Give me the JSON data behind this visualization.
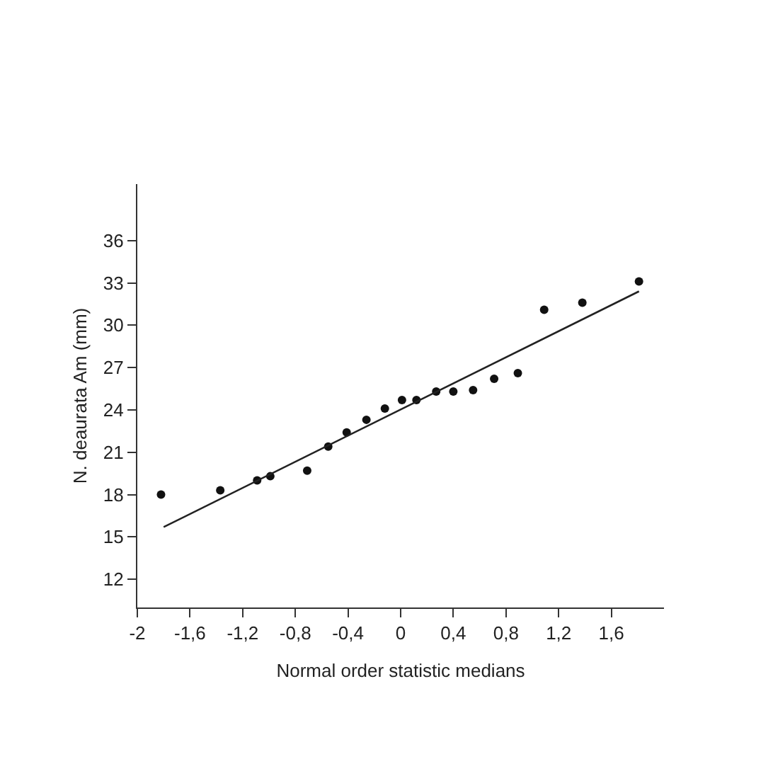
{
  "chart_data": {
    "type": "scatter",
    "xlabel": "Normal order statistic medians",
    "ylabel": "N. deaurata Am (mm)",
    "xlim": [
      -2,
      2
    ],
    "ylim": [
      10,
      40
    ],
    "xticks": [
      {
        "value": -2,
        "label": "-2"
      },
      {
        "value": -1.6,
        "label": "-1,6"
      },
      {
        "value": -1.2,
        "label": "-1,2"
      },
      {
        "value": -0.8,
        "label": "-0,8"
      },
      {
        "value": -0.4,
        "label": "-0,4"
      },
      {
        "value": 0,
        "label": "0"
      },
      {
        "value": 0.4,
        "label": "0,4"
      },
      {
        "value": 0.8,
        "label": "0,8"
      },
      {
        "value": 1.2,
        "label": "1,2"
      },
      {
        "value": 1.6,
        "label": "1,6"
      }
    ],
    "yticks": [
      12,
      15,
      18,
      21,
      24,
      27,
      30,
      33,
      36
    ],
    "grid": false,
    "marker": "circle",
    "series": [
      {
        "color": "#111111",
        "x": [
          -1.82,
          -1.37,
          -1.09,
          -0.99,
          -0.71,
          -0.55,
          -0.41,
          -0.26,
          -0.12,
          0.01,
          0.12,
          0.27,
          0.4,
          0.55,
          0.71,
          0.89,
          1.09,
          1.38,
          1.81
        ],
        "values": [
          18.0,
          18.3,
          19.0,
          19.3,
          19.7,
          21.4,
          22.4,
          23.3,
          24.1,
          24.7,
          24.7,
          25.3,
          25.3,
          25.4,
          26.2,
          26.6,
          31.1,
          31.6,
          33.1
        ]
      },
      {
        "type": "line",
        "color": "#222222",
        "marker": "none",
        "line_style": "solid",
        "x": [
          -1.8,
          1.81
        ],
        "values": [
          15.7,
          32.4
        ]
      }
    ]
  }
}
